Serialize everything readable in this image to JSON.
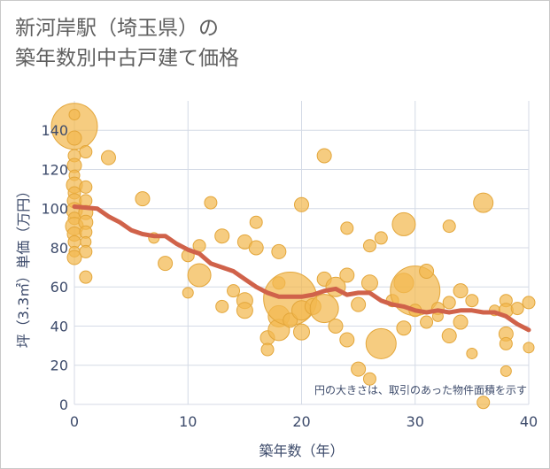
{
  "title_line1": "新河岸駅（埼玉県）の",
  "title_line2": "築年数別中古戸建て価格",
  "colors": {
    "bubble_fill": "#f2b94f",
    "bubble_stroke": "#e3a63a",
    "trend_line": "#d0624a",
    "grid": "#d4dae6",
    "tick_text": "#3d4b6b"
  },
  "chart_data": {
    "type": "scatter",
    "xlabel": "築年数（年）",
    "ylabel": "坪（3.3㎡）単価（万円）",
    "xlim": [
      0,
      40
    ],
    "ylim": [
      0,
      155
    ],
    "x_ticks": [
      0,
      10,
      20,
      30,
      40
    ],
    "y_ticks": [
      0,
      20,
      40,
      60,
      80,
      100,
      120,
      140
    ],
    "grid": true,
    "annotation": "円の大きさは、取引のあった物件面積を示す",
    "bubbles": [
      {
        "x": 0,
        "y": 142,
        "r": 26
      },
      {
        "x": 0,
        "y": 148,
        "r": 6
      },
      {
        "x": 0,
        "y": 136,
        "r": 8
      },
      {
        "x": 0,
        "y": 127,
        "r": 7
      },
      {
        "x": 0,
        "y": 122,
        "r": 8
      },
      {
        "x": 0,
        "y": 117,
        "r": 6
      },
      {
        "x": 0,
        "y": 112,
        "r": 9
      },
      {
        "x": 0,
        "y": 108,
        "r": 7
      },
      {
        "x": 0,
        "y": 104,
        "r": 8
      },
      {
        "x": 0,
        "y": 99,
        "r": 9
      },
      {
        "x": 0,
        "y": 95,
        "r": 7
      },
      {
        "x": 0,
        "y": 91,
        "r": 10
      },
      {
        "x": 0,
        "y": 87,
        "r": 8
      },
      {
        "x": 0,
        "y": 83,
        "r": 7
      },
      {
        "x": 0,
        "y": 78,
        "r": 6
      },
      {
        "x": 0,
        "y": 75,
        "r": 8
      },
      {
        "x": 1,
        "y": 129,
        "r": 7
      },
      {
        "x": 1,
        "y": 111,
        "r": 7
      },
      {
        "x": 1,
        "y": 104,
        "r": 7
      },
      {
        "x": 1,
        "y": 98,
        "r": 8
      },
      {
        "x": 1,
        "y": 93,
        "r": 8
      },
      {
        "x": 1,
        "y": 88,
        "r": 7
      },
      {
        "x": 1,
        "y": 83,
        "r": 6
      },
      {
        "x": 1,
        "y": 78,
        "r": 7
      },
      {
        "x": 1,
        "y": 65,
        "r": 7
      },
      {
        "x": 3,
        "y": 126,
        "r": 8
      },
      {
        "x": 6,
        "y": 105,
        "r": 8
      },
      {
        "x": 7,
        "y": 85,
        "r": 6
      },
      {
        "x": 8,
        "y": 72,
        "r": 8
      },
      {
        "x": 10,
        "y": 76,
        "r": 7
      },
      {
        "x": 10,
        "y": 57,
        "r": 6
      },
      {
        "x": 11,
        "y": 81,
        "r": 7
      },
      {
        "x": 11,
        "y": 66,
        "r": 13
      },
      {
        "x": 12,
        "y": 103,
        "r": 7
      },
      {
        "x": 13,
        "y": 86,
        "r": 8
      },
      {
        "x": 13,
        "y": 50,
        "r": 7
      },
      {
        "x": 14,
        "y": 58,
        "r": 7
      },
      {
        "x": 15,
        "y": 83,
        "r": 8
      },
      {
        "x": 15,
        "y": 53,
        "r": 9
      },
      {
        "x": 15,
        "y": 48,
        "r": 9
      },
      {
        "x": 16,
        "y": 93,
        "r": 7
      },
      {
        "x": 16,
        "y": 80,
        "r": 8
      },
      {
        "x": 17,
        "y": 34,
        "r": 8
      },
      {
        "x": 17,
        "y": 28,
        "r": 7
      },
      {
        "x": 18,
        "y": 78,
        "r": 8
      },
      {
        "x": 18,
        "y": 62,
        "r": 7
      },
      {
        "x": 18,
        "y": 45,
        "r": 12
      },
      {
        "x": 18,
        "y": 38,
        "r": 12
      },
      {
        "x": 19,
        "y": 54,
        "r": 30
      },
      {
        "x": 19,
        "y": 43,
        "r": 8
      },
      {
        "x": 20,
        "y": 102,
        "r": 8
      },
      {
        "x": 20,
        "y": 48,
        "r": 11
      },
      {
        "x": 20,
        "y": 37,
        "r": 9
      },
      {
        "x": 21,
        "y": 50,
        "r": 9
      },
      {
        "x": 22,
        "y": 127,
        "r": 8
      },
      {
        "x": 22,
        "y": 64,
        "r": 8
      },
      {
        "x": 22,
        "y": 49,
        "r": 16
      },
      {
        "x": 23,
        "y": 60,
        "r": 11
      },
      {
        "x": 23,
        "y": 40,
        "r": 8
      },
      {
        "x": 24,
        "y": 90,
        "r": 7
      },
      {
        "x": 24,
        "y": 66,
        "r": 8
      },
      {
        "x": 24,
        "y": 33,
        "r": 8
      },
      {
        "x": 25,
        "y": 51,
        "r": 8
      },
      {
        "x": 25,
        "y": 18,
        "r": 8
      },
      {
        "x": 26,
        "y": 81,
        "r": 7
      },
      {
        "x": 26,
        "y": 62,
        "r": 9
      },
      {
        "x": 26,
        "y": 13,
        "r": 7
      },
      {
        "x": 27,
        "y": 85,
        "r": 7
      },
      {
        "x": 27,
        "y": 31,
        "r": 17
      },
      {
        "x": 28,
        "y": 53,
        "r": 7
      },
      {
        "x": 29,
        "y": 92,
        "r": 13
      },
      {
        "x": 29,
        "y": 62,
        "r": 11
      },
      {
        "x": 29,
        "y": 39,
        "r": 8
      },
      {
        "x": 30,
        "y": 58,
        "r": 28
      },
      {
        "x": 30,
        "y": 48,
        "r": 7
      },
      {
        "x": 31,
        "y": 68,
        "r": 8
      },
      {
        "x": 31,
        "y": 42,
        "r": 7
      },
      {
        "x": 32,
        "y": 49,
        "r": 7
      },
      {
        "x": 32,
        "y": 45,
        "r": 6
      },
      {
        "x": 33,
        "y": 91,
        "r": 7
      },
      {
        "x": 33,
        "y": 52,
        "r": 7
      },
      {
        "x": 33,
        "y": 35,
        "r": 8
      },
      {
        "x": 34,
        "y": 58,
        "r": 8
      },
      {
        "x": 34,
        "y": 42,
        "r": 8
      },
      {
        "x": 35,
        "y": 53,
        "r": 7
      },
      {
        "x": 35,
        "y": 26,
        "r": 6
      },
      {
        "x": 36,
        "y": 103,
        "r": 11
      },
      {
        "x": 36,
        "y": 1,
        "r": 7
      },
      {
        "x": 37,
        "y": 48,
        "r": 6
      },
      {
        "x": 38,
        "y": 53,
        "r": 7
      },
      {
        "x": 38,
        "y": 48,
        "r": 8
      },
      {
        "x": 38,
        "y": 36,
        "r": 8
      },
      {
        "x": 38,
        "y": 31,
        "r": 7
      },
      {
        "x": 38,
        "y": 17,
        "r": 6
      },
      {
        "x": 39,
        "y": 49,
        "r": 7
      },
      {
        "x": 40,
        "y": 52,
        "r": 7
      },
      {
        "x": 40,
        "y": 29,
        "r": 6
      }
    ],
    "trend": {
      "x": [
        0,
        2,
        3,
        4,
        5,
        6,
        7,
        8,
        9,
        10,
        11,
        12,
        13,
        14,
        15,
        16,
        17,
        18,
        19,
        20,
        21,
        22,
        23,
        24,
        25,
        26,
        27,
        28,
        29,
        30,
        31,
        32,
        33,
        34,
        35,
        36,
        37,
        38,
        39,
        40
      ],
      "y": [
        101,
        100,
        96,
        93,
        89,
        87,
        86,
        86,
        82,
        79,
        77,
        72,
        70,
        68,
        64,
        60,
        57,
        55,
        55,
        55,
        56,
        58,
        59,
        56,
        57,
        57,
        53,
        51,
        50,
        48,
        47,
        48,
        47,
        48,
        48,
        47,
        47,
        45,
        41,
        38
      ]
    }
  }
}
